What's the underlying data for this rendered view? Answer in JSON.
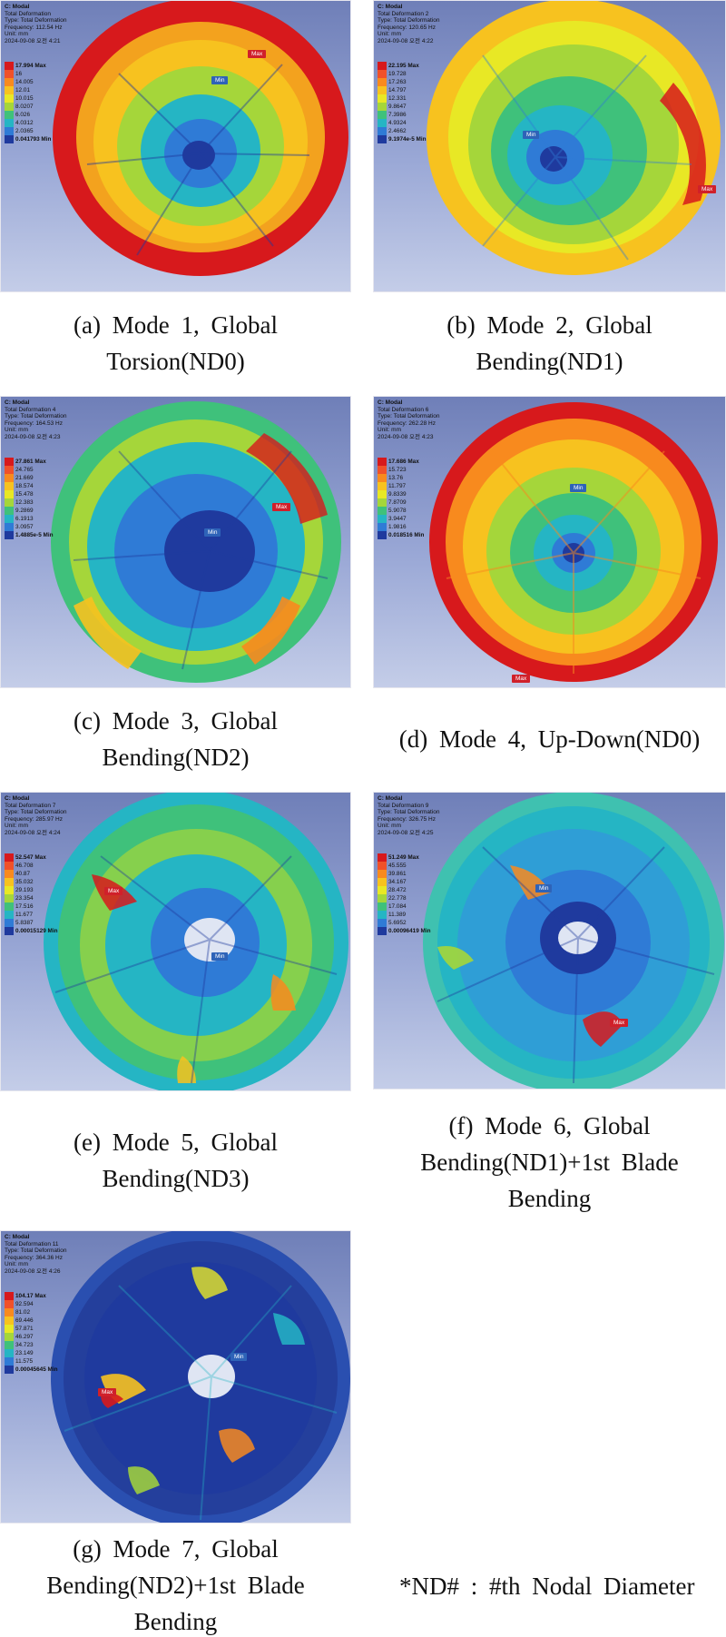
{
  "panels": [
    {
      "id": "a",
      "header": [
        "C: Modal",
        "Total Deformation",
        "Type: Total Deformation",
        "Frequency: 112.54 Hz",
        "Unit: mm",
        "2024-09-08 오전 4:21"
      ],
      "legend": [
        "17.994 Max",
        "16",
        "14.005",
        "12.01",
        "10.015",
        "8.0207",
        "6.026",
        "4.0312",
        "2.0365",
        "0.041793 Min"
      ],
      "max_tag": "Max",
      "min_tag": "Min",
      "caption": [
        "(a) Mode 1, Global",
        "Torsion(ND0)"
      ]
    },
    {
      "id": "b",
      "header": [
        "C: Modal",
        "Total Deformation 2",
        "Type: Total Deformation",
        "Frequency: 120.65 Hz",
        "Unit: mm",
        "2024-09-08 오전 4:22"
      ],
      "legend": [
        "22.195 Max",
        "19.728",
        "17.263",
        "14.797",
        "12.331",
        "9.8647",
        "7.3986",
        "4.9324",
        "2.4662",
        "9.1974e-5 Min"
      ],
      "max_tag": "Max",
      "min_tag": "Min",
      "caption": [
        "(b) Mode 2, Global",
        "Bending(ND1)"
      ]
    },
    {
      "id": "c",
      "header": [
        "C: Modal",
        "Total Deformation 4",
        "Type: Total Deformation",
        "Frequency: 164.53 Hz",
        "Unit: mm",
        "2024-09-08 오전 4:23"
      ],
      "legend": [
        "27.861 Max",
        "24.765",
        "21.669",
        "18.574",
        "15.478",
        "12.383",
        "9.2869",
        "6.1913",
        "3.0957",
        "1.4885e-5 Min"
      ],
      "max_tag": "Max",
      "min_tag": "Min",
      "caption": [
        "(c) Mode 3, Global",
        "Bending(ND2)"
      ]
    },
    {
      "id": "d",
      "header": [
        "C: Modal",
        "Total Deformation 6",
        "Type: Total Deformation",
        "Frequency: 262.28 Hz",
        "Unit: mm",
        "2024-09-08 오전 4:23"
      ],
      "legend": [
        "17.686 Max",
        "15.723",
        "13.76",
        "11.797",
        "9.8339",
        "7.8709",
        "5.9078",
        "3.9447",
        "1.9816",
        "0.018516 Min"
      ],
      "max_tag": "Max",
      "min_tag": "Min",
      "caption": [
        "(d) Mode 4, Up-Down(ND0)"
      ]
    },
    {
      "id": "e",
      "header": [
        "C: Modal",
        "Total Deformation 7",
        "Type: Total Deformation",
        "Frequency: 285.97 Hz",
        "Unit: mm",
        "2024-09-08 오전 4:24"
      ],
      "legend": [
        "52.547 Max",
        "46.708",
        "40.87",
        "35.032",
        "29.193",
        "23.354",
        "17.516",
        "11.677",
        "5.8387",
        "0.00015129 Min"
      ],
      "max_tag": "Max",
      "min_tag": "Min",
      "caption": [
        "(e) Mode 5, Global",
        "Bending(ND3)"
      ]
    },
    {
      "id": "f",
      "header": [
        "C: Modal",
        "Total Deformation 9",
        "Type: Total Deformation",
        "Frequency: 326.75 Hz",
        "Unit: mm",
        "2024-09-08 오전 4:25"
      ],
      "legend": [
        "51.249 Max",
        "45.555",
        "39.861",
        "34.167",
        "28.472",
        "22.778",
        "17.084",
        "11.389",
        "5.6952",
        "0.00096419 Min"
      ],
      "max_tag": "Max",
      "min_tag": "Min",
      "caption": [
        "(f) Mode 6, Global",
        "Bending(ND1)+1st Blade",
        "Bending"
      ]
    },
    {
      "id": "g",
      "header": [
        "C: Modal",
        "Total Deformation 11",
        "Type: Total Deformation",
        "Frequency: 364.36 Hz",
        "Unit: mm",
        "2024-09-08 오전 4:26"
      ],
      "legend": [
        "104.17 Max",
        "92.594",
        "81.02",
        "69.446",
        "57.871",
        "46.297",
        "34.723",
        "23.149",
        "11.575",
        "0.00045645 Min"
      ],
      "max_tag": "Max",
      "min_tag": "Min",
      "caption": [
        "(g) Mode 7, Global",
        "Bending(ND2)+1st Blade",
        "Bending"
      ]
    }
  ],
  "legend_colors": [
    "#d7191c",
    "#f0512a",
    "#f88a1e",
    "#f7c21f",
    "#e8e825",
    "#a5d63a",
    "#3fc17b",
    "#25b5c4",
    "#2f7bd6",
    "#1f3a9e"
  ],
  "footnote": "*ND# : #th Nodal Diameter"
}
